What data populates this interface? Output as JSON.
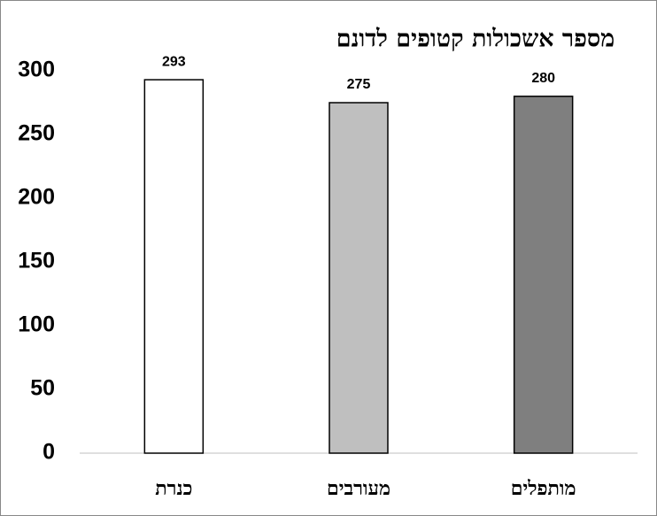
{
  "chart_data": {
    "type": "bar",
    "title": "מספר אשכולות קטופים לדונם",
    "categories": [
      "כנרת",
      "מעורבים",
      "מותפלים"
    ],
    "values": [
      293,
      275,
      280
    ],
    "colors": [
      "#ffffff",
      "#bfbfbf",
      "#7f7f7f"
    ],
    "ylim": [
      0,
      300
    ],
    "yticks": [
      0,
      50,
      100,
      150,
      200,
      250,
      300
    ],
    "grid": false
  }
}
